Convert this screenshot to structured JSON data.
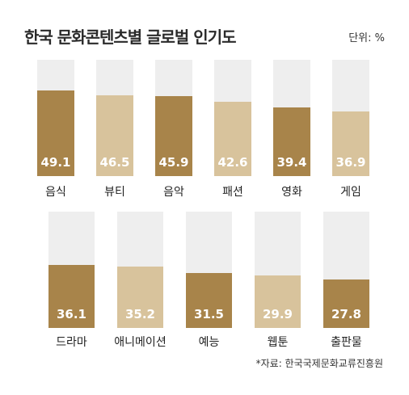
{
  "title": "한국 문화콘텐츠별 글로벌 인기도",
  "unit": "단위: %",
  "source": "*자료: 한국국제문화교류진흥원",
  "colors": {
    "dark": "#a8844a",
    "light": "#d8c39c",
    "track": "#eeeeee"
  },
  "chart_data": {
    "type": "bar",
    "title": "한국 문화콘텐츠별 글로벌 인기도",
    "unit": "%",
    "ylim": [
      0,
      100
    ],
    "categories": [
      "음식",
      "뷰티",
      "음악",
      "패션",
      "영화",
      "게임",
      "드라마",
      "애니메이션",
      "예능",
      "웹툰",
      "출판물"
    ],
    "values": [
      49.1,
      46.5,
      45.9,
      42.6,
      39.4,
      36.9,
      36.1,
      35.2,
      31.5,
      29.9,
      27.8
    ],
    "value_labels": [
      "49.1",
      "46.5",
      "45.9",
      "42.6",
      "39.4",
      "36.9",
      "36.1",
      "35.2",
      "31.5",
      "29.9",
      "27.8"
    ],
    "shades": [
      "dark",
      "light",
      "dark",
      "light",
      "dark",
      "light",
      "dark",
      "light",
      "dark",
      "light",
      "dark"
    ]
  }
}
